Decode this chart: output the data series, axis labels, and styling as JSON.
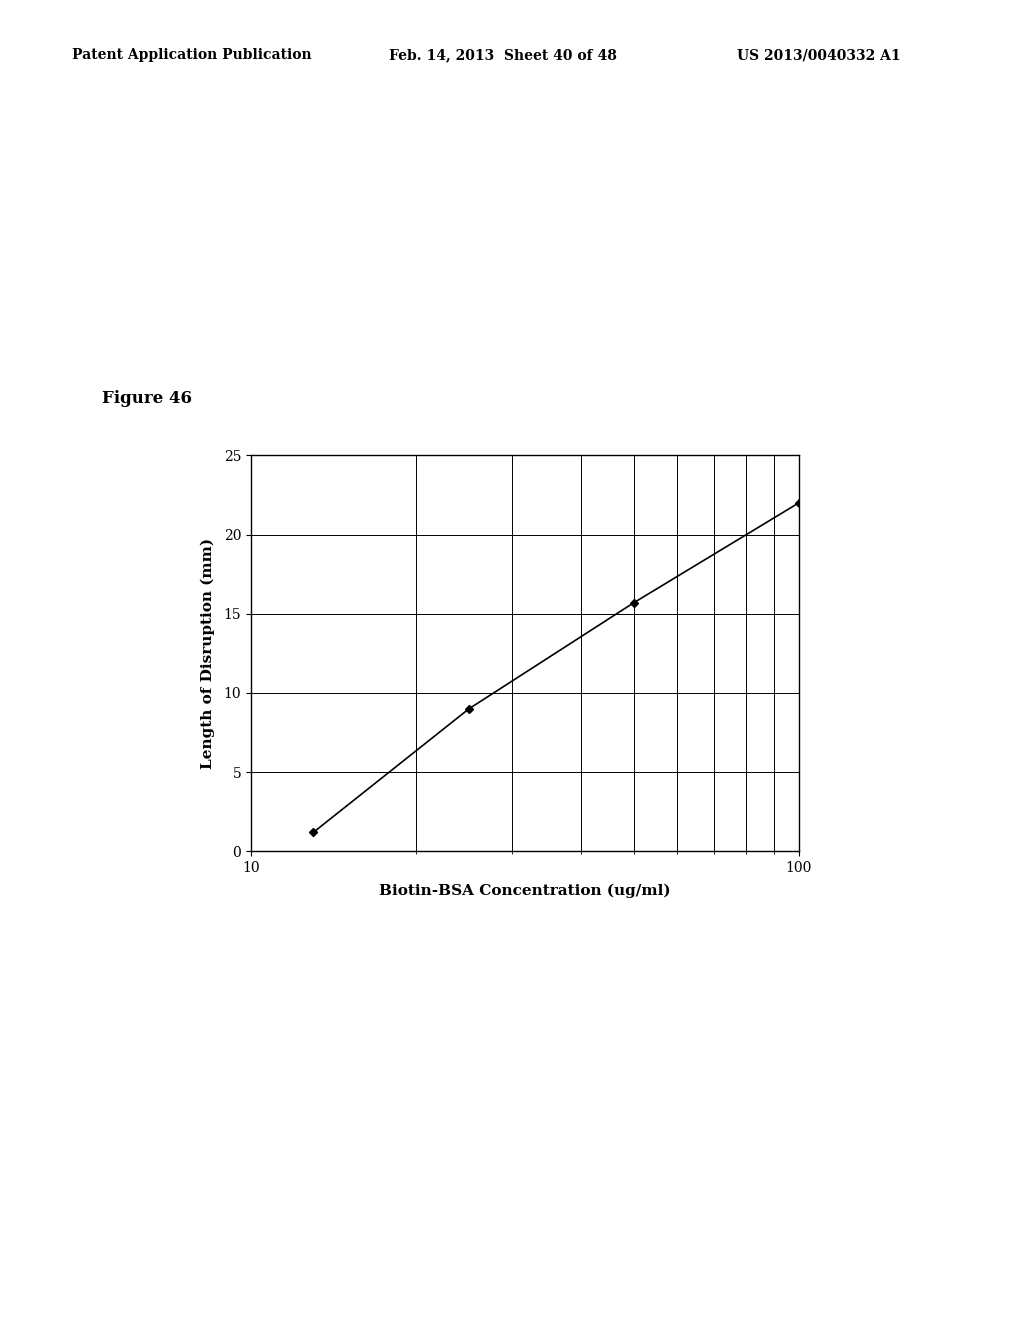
{
  "title_header": "Patent Application Publication",
  "title_date": "Feb. 14, 2013  Sheet 40 of 48",
  "title_patent": "US 2013/0040332 A1",
  "figure_label": "Figure 46",
  "xlabel": "Biotin-BSA Concentration (ug/ml)",
  "ylabel": "Length of Disruption (mm)",
  "x_data": [
    13,
    25,
    50,
    100
  ],
  "y_data": [
    1.2,
    9.0,
    15.7,
    22.0
  ],
  "xlim": [
    10,
    100
  ],
  "ylim": [
    0,
    25
  ],
  "yticks": [
    0,
    5,
    10,
    15,
    20,
    25
  ],
  "background_color": "#ffffff",
  "line_color": "#000000",
  "marker_color": "#000000",
  "header_fontsize": 10,
  "figure_label_fontsize": 12,
  "axis_label_fontsize": 11,
  "tick_fontsize": 10
}
